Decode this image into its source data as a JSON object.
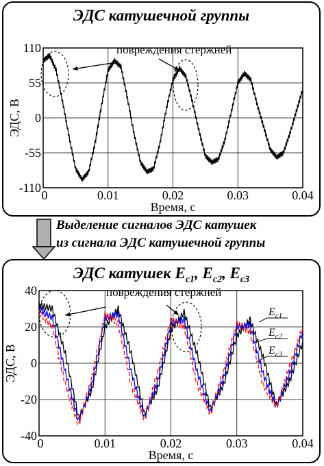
{
  "caption_mid": {
    "line1": "Выделение сигналов ЭДС катушек",
    "line2": "из сигнала ЭДС катушечной группы"
  },
  "chart_data": [
    {
      "type": "line",
      "title": "ЭДС катушечной группы",
      "annotation": "повреждения стержней",
      "xlabel": "Время, с",
      "ylabel": "ЭДС, В",
      "xlim": [
        0,
        0.04
      ],
      "ylim": [
        -110,
        110
      ],
      "x_ticks": [
        "0",
        "0.01",
        "0.02",
        "0.03",
        "0.04"
      ],
      "y_ticks": [
        "110",
        "55",
        "0",
        "-55",
        "-110"
      ],
      "grid": true,
      "series": [
        {
          "color": "#000000",
          "x": [
            0,
            0.001,
            0.002,
            0.003,
            0.004,
            0.005,
            0.006,
            0.007,
            0.008,
            0.009,
            0.01,
            0.011,
            0.012,
            0.013,
            0.014,
            0.015,
            0.016,
            0.017,
            0.018,
            0.019,
            0.02,
            0.021,
            0.022,
            0.023,
            0.024,
            0.025,
            0.026,
            0.027,
            0.028,
            0.029,
            0.03,
            0.031,
            0.032,
            0.033,
            0.034,
            0.035,
            0.036,
            0.037,
            0.038,
            0.039,
            0.04
          ],
          "values": [
            90,
            98,
            75,
            25,
            -30,
            -80,
            -97,
            -85,
            -40,
            20,
            75,
            90,
            80,
            30,
            -25,
            -70,
            -85,
            -80,
            -40,
            15,
            60,
            78,
            65,
            25,
            -20,
            -60,
            -70,
            -65,
            -35,
            10,
            55,
            70,
            60,
            20,
            -15,
            -50,
            -62,
            -55,
            -25,
            10,
            45
          ]
        }
      ]
    },
    {
      "type": "line",
      "title": "ЭДС катушек E",
      "title_parts": [
        "c1",
        "c2",
        "c3"
      ],
      "annotation": "повреждения стержней",
      "xlabel": "Время, с",
      "ylabel": "ЭДС, В",
      "xlim": [
        0,
        0.04
      ],
      "ylim": [
        -40,
        40
      ],
      "x_ticks": [
        "0",
        "0.01",
        "0.02",
        "0.03",
        "0.04"
      ],
      "y_ticks": [
        "40",
        "20",
        "0",
        "-20",
        "-40"
      ],
      "grid": true,
      "legend_labels": [
        "E",
        "E",
        "E"
      ],
      "legend_subs": [
        "c1",
        "c2",
        "c3"
      ],
      "series": [
        {
          "name": "Ec1",
          "color": "#000000",
          "x": [
            0,
            0.002,
            0.004,
            0.006,
            0.008,
            0.01,
            0.012,
            0.014,
            0.016,
            0.018,
            0.02,
            0.022,
            0.024,
            0.026,
            0.028,
            0.03,
            0.032,
            0.034,
            0.036,
            0.038,
            0.04
          ],
          "values": [
            32,
            30,
            5,
            -30,
            -15,
            20,
            30,
            5,
            -28,
            -14,
            18,
            28,
            5,
            -25,
            -12,
            15,
            24,
            3,
            -23,
            -10,
            12
          ]
        },
        {
          "name": "Ec2",
          "color": "#0000ee",
          "x": [
            0,
            0.002,
            0.004,
            0.006,
            0.008,
            0.01,
            0.012,
            0.014,
            0.016,
            0.018,
            0.02,
            0.022,
            0.024,
            0.026,
            0.028,
            0.03,
            0.032,
            0.034,
            0.036,
            0.038,
            0.04
          ],
          "values": [
            30,
            25,
            -5,
            -32,
            -12,
            25,
            27,
            -5,
            -30,
            -10,
            22,
            24,
            -5,
            -27,
            -8,
            20,
            21,
            -6,
            -24,
            -6,
            18
          ]
        },
        {
          "name": "Ec3",
          "color": "#ee1111",
          "x": [
            0,
            0.002,
            0.004,
            0.006,
            0.008,
            0.01,
            0.012,
            0.014,
            0.016,
            0.018,
            0.02,
            0.022,
            0.024,
            0.026,
            0.028,
            0.03,
            0.032,
            0.034,
            0.036,
            0.038,
            0.04
          ],
          "values": [
            28,
            20,
            -12,
            -34,
            -8,
            27,
            22,
            -12,
            -31,
            -5,
            24,
            20,
            -12,
            -28,
            -4,
            22,
            17,
            -12,
            -24,
            -2,
            20
          ]
        }
      ]
    }
  ]
}
